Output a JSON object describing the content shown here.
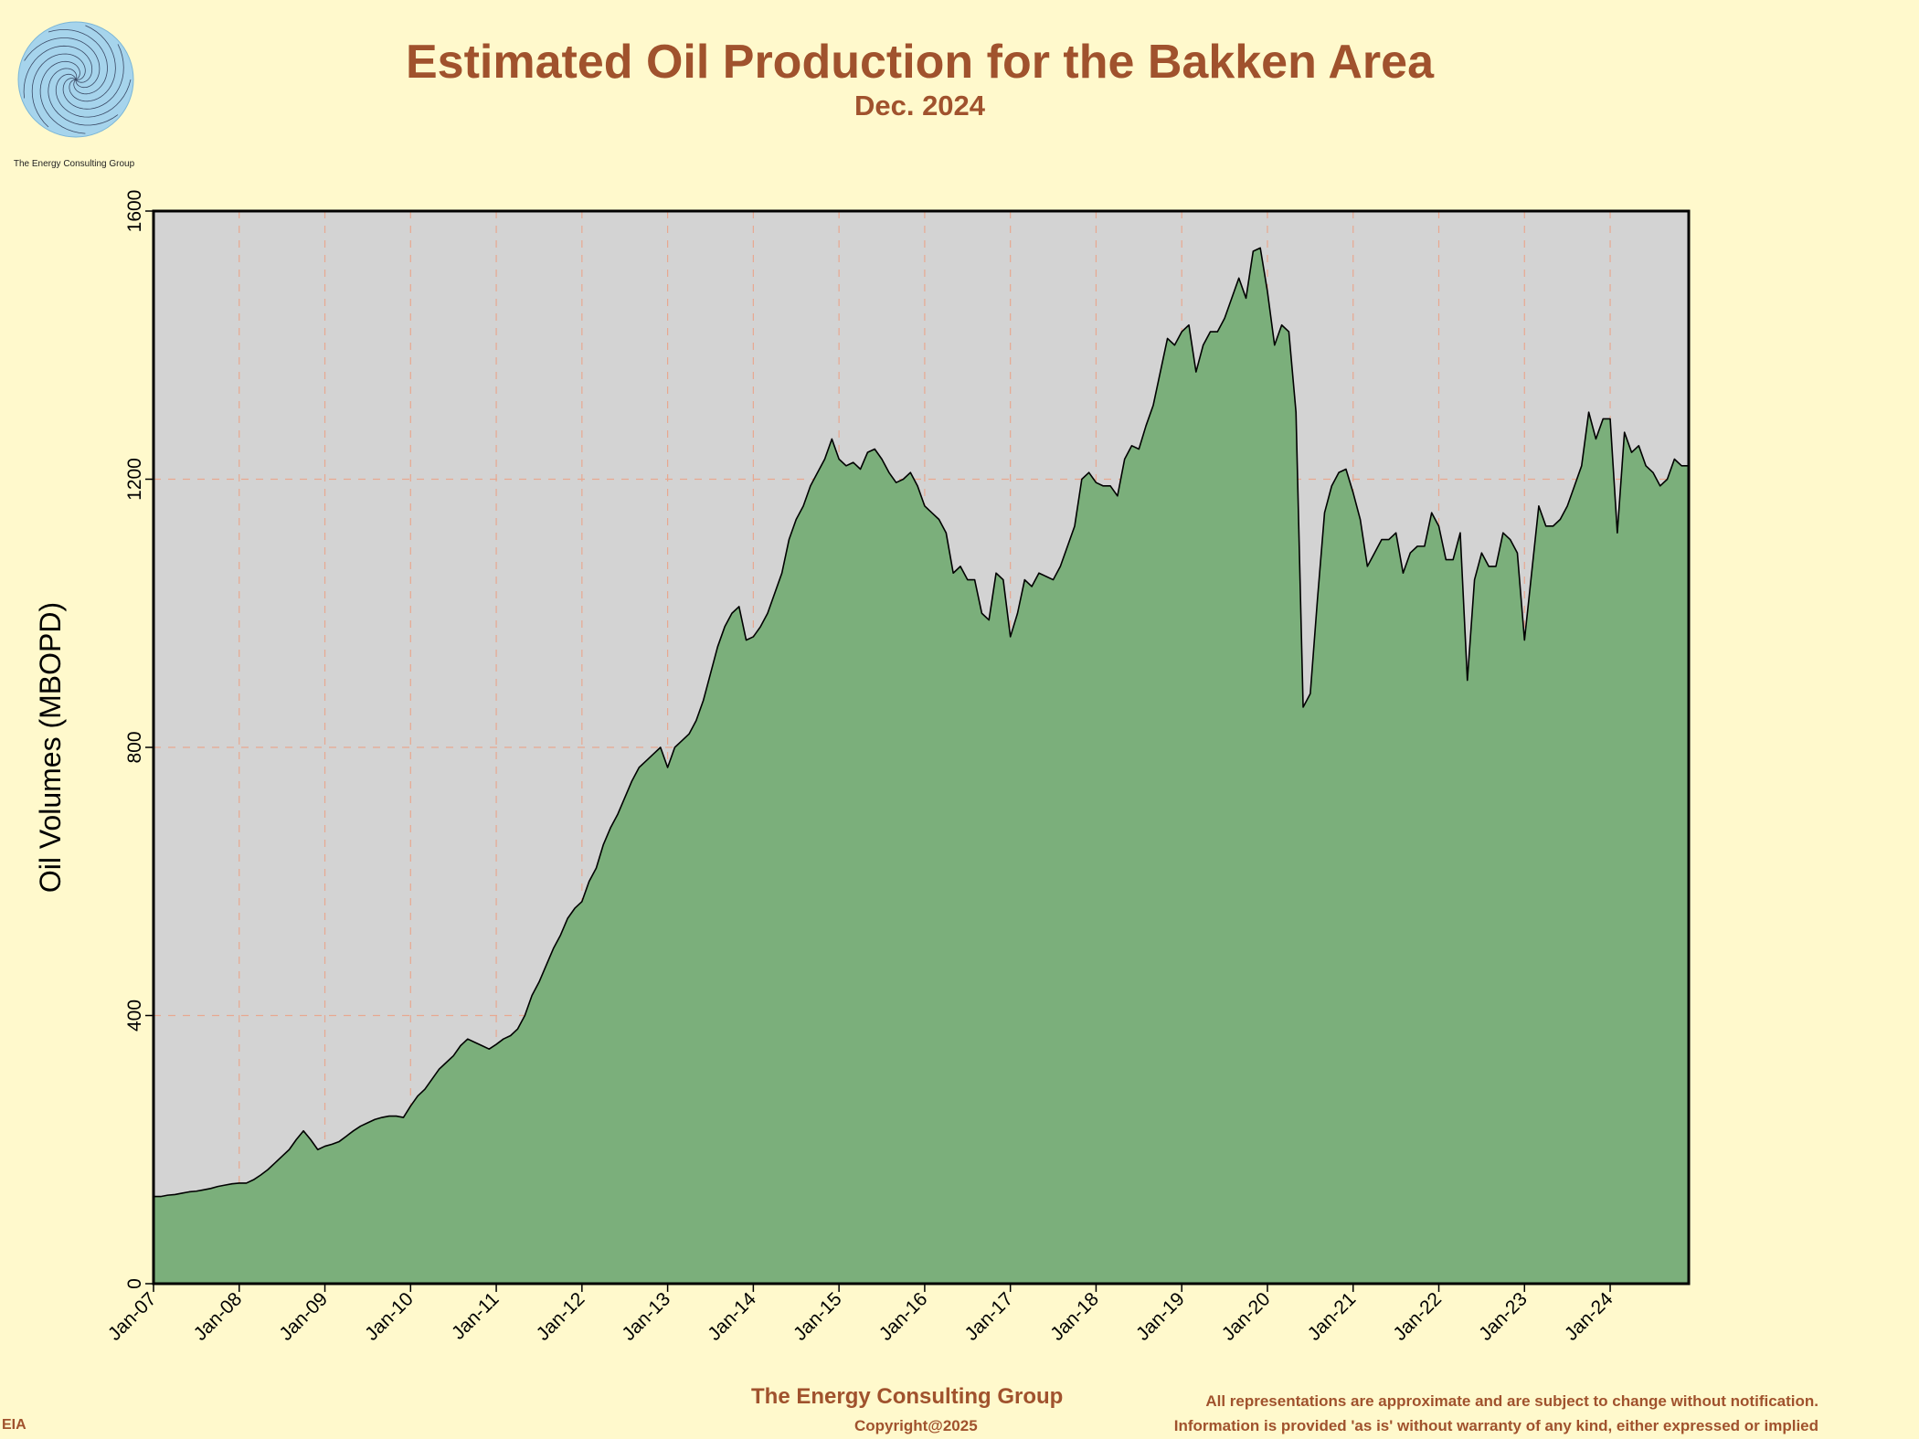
{
  "header": {
    "title": "Estimated Oil Production for the Bakken Area",
    "subtitle": "Dec. 2024",
    "logo_caption": "The Energy Consulting Group"
  },
  "footer": {
    "brand": "The Energy Consulting Group",
    "copyright": "Copyright@2025",
    "source": "EIA",
    "disclaimer_line1": "All representations are approximate and are subject to change without notification.",
    "disclaimer_line2": "Information is provided 'as is' without warranty of any kind, either expressed or implied"
  },
  "colors": {
    "background": "#FFF9CC",
    "plot_background": "#D3D3D3",
    "area_fill": "#7BAF7B",
    "area_line": "#000000",
    "grid": "#E8A890",
    "text_accent": "#A0522D"
  },
  "chart_data": {
    "type": "area",
    "title": "Estimated Oil Production for the Bakken Area",
    "subtitle": "Dec. 2024",
    "xlabel": "",
    "ylabel": "Oil Volumes (MBOPD)",
    "ylim": [
      0,
      1600
    ],
    "yticks": [
      0,
      400,
      800,
      1200,
      1600
    ],
    "xlim": [
      "Jan-07",
      "Dec-24"
    ],
    "xticks": [
      "Jan-07",
      "Jan-08",
      "Jan-09",
      "Jan-10",
      "Jan-11",
      "Jan-12",
      "Jan-13",
      "Jan-14",
      "Jan-15",
      "Jan-16",
      "Jan-17",
      "Jan-18",
      "Jan-19",
      "Jan-20",
      "Jan-21",
      "Jan-22",
      "Jan-23",
      "Jan-24"
    ],
    "grid": true,
    "start_month": "Jan-07",
    "end_month": "Dec-24",
    "values": [
      130,
      130,
      132,
      133,
      135,
      137,
      138,
      140,
      142,
      145,
      147,
      149,
      150,
      150,
      155,
      162,
      170,
      180,
      190,
      200,
      215,
      228,
      215,
      200,
      205,
      208,
      212,
      220,
      228,
      235,
      240,
      245,
      248,
      250,
      250,
      248,
      265,
      280,
      290,
      305,
      320,
      330,
      340,
      355,
      365,
      360,
      355,
      350,
      357,
      365,
      370,
      380,
      400,
      430,
      450,
      475,
      500,
      520,
      545,
      560,
      570,
      600,
      620,
      655,
      680,
      700,
      725,
      750,
      770,
      780,
      790,
      800,
      770,
      800,
      810,
      820,
      840,
      870,
      910,
      950,
      980,
      1000,
      1010,
      960,
      965,
      980,
      1000,
      1030,
      1060,
      1110,
      1140,
      1160,
      1190,
      1210,
      1230,
      1260,
      1230,
      1220,
      1225,
      1215,
      1240,
      1245,
      1230,
      1210,
      1195,
      1200,
      1210,
      1190,
      1160,
      1150,
      1140,
      1120,
      1060,
      1070,
      1050,
      1050,
      1000,
      990,
      1060,
      1050,
      965,
      1000,
      1050,
      1040,
      1060,
      1055,
      1050,
      1070,
      1100,
      1130,
      1200,
      1210,
      1195,
      1190,
      1190,
      1175,
      1230,
      1250,
      1245,
      1280,
      1310,
      1360,
      1410,
      1400,
      1420,
      1430,
      1360,
      1400,
      1420,
      1420,
      1440,
      1470,
      1500,
      1470,
      1540,
      1545,
      1480,
      1400,
      1430,
      1420,
      1300,
      860,
      880,
      1020,
      1150,
      1190,
      1210,
      1215,
      1180,
      1140,
      1070,
      1090,
      1110,
      1110,
      1120,
      1060,
      1090,
      1100,
      1100,
      1150,
      1130,
      1080,
      1080,
      1120,
      900,
      1050,
      1090,
      1070,
      1070,
      1120,
      1110,
      1090,
      960,
      1060,
      1160,
      1130,
      1130,
      1140,
      1160,
      1190,
      1220,
      1300,
      1260,
      1290,
      1290,
      1120,
      1270,
      1240,
      1250,
      1220,
      1210,
      1190,
      1200,
      1230,
      1220,
      1220
    ]
  }
}
